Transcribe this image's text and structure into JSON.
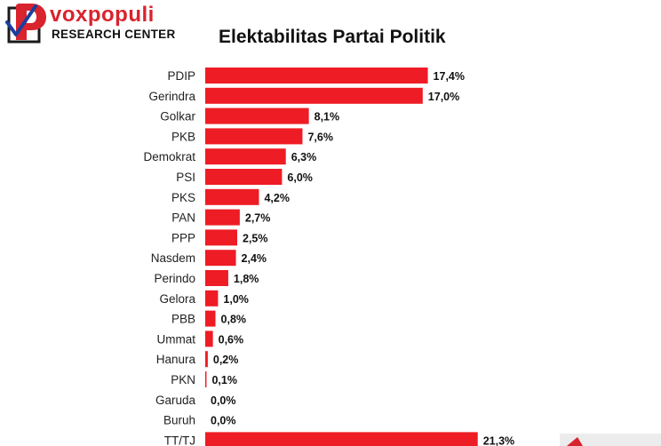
{
  "brand": {
    "name": "voxpopuli",
    "subtitle": "RESEARCH CENTER",
    "accent": "#d9232d"
  },
  "chart_data": {
    "type": "bar",
    "orientation": "horizontal",
    "title": "Elektabilitas Partai Politik",
    "bar_color": "#ee1c25",
    "categories": [
      "PDIP",
      "Gerindra",
      "Golkar",
      "PKB",
      "Demokrat",
      "PSI",
      "PKS",
      "PAN",
      "PPP",
      "Nasdem",
      "Perindo",
      "Gelora",
      "PBB",
      "Ummat",
      "Hanura",
      "PKN",
      "Garuda",
      "Buruh",
      "TT/TJ"
    ],
    "values": [
      17.4,
      17.0,
      8.1,
      7.6,
      6.3,
      6.0,
      4.2,
      2.7,
      2.5,
      2.4,
      1.8,
      1.0,
      0.8,
      0.6,
      0.2,
      0.1,
      0.0,
      0.0,
      21.3
    ],
    "data_labels": [
      "17,4%",
      "17,0%",
      "8,1%",
      "7,6%",
      "6,3%",
      "6,0%",
      "4,2%",
      "2,7%",
      "2,5%",
      "2,4%",
      "1,8%",
      "1,0%",
      "0,8%",
      "0,6%",
      "0,2%",
      "0,1%",
      "0,0%",
      "0,0%",
      "21,3%"
    ],
    "xlabel": "",
    "ylabel": "",
    "grid": false,
    "legend": "none"
  }
}
